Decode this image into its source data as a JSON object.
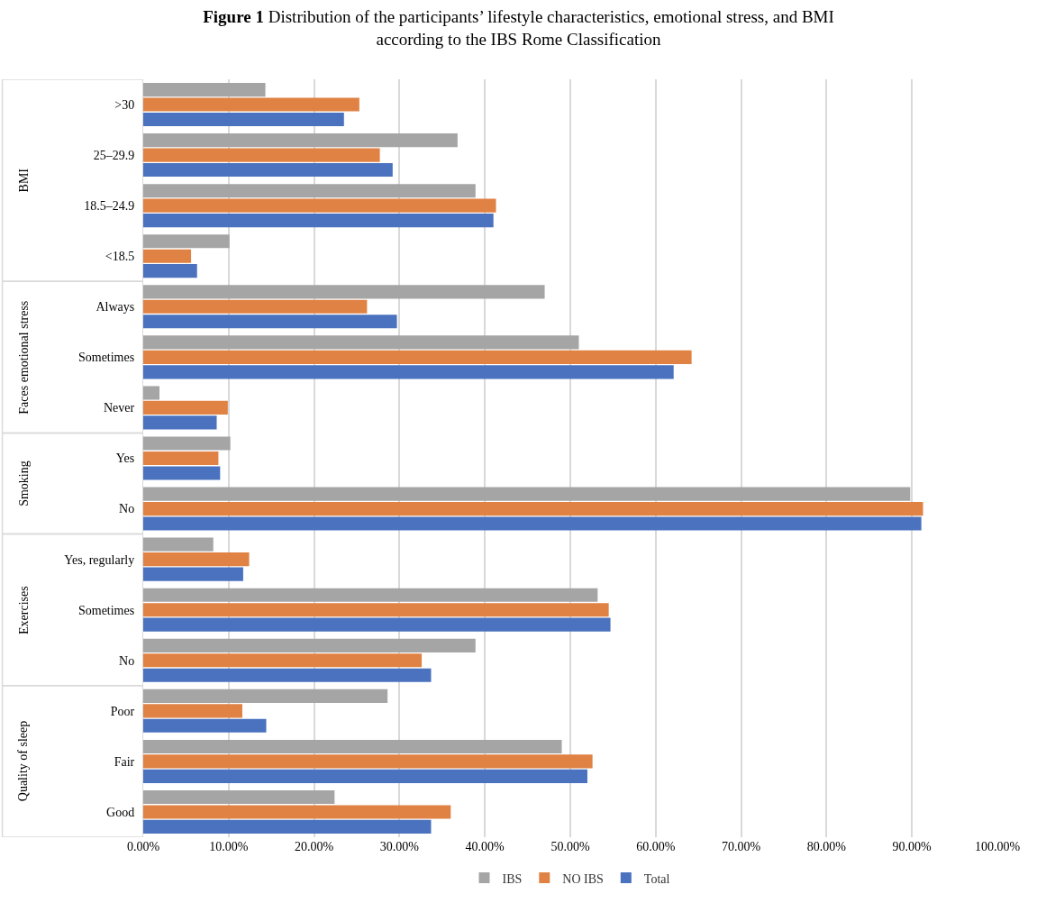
{
  "chart_data": {
    "type": "bar",
    "orientation": "horizontal",
    "title": "Figure 1 Distribution of the participants’ lifestyle characteristics, emotional stress, and BMI\naccording to the IBS Rome Classification",
    "categories": [
      ">30",
      "25–29.9",
      "18.5–24.9",
      "<18.5",
      "Always",
      "Sometimes",
      "Never",
      "Yes",
      "No",
      "Yes, regularly",
      "Sometimes",
      "No",
      "Poor",
      "Fair",
      "Good"
    ],
    "series": [
      {
        "name": "IBS",
        "color": "#a5a5a5",
        "values": [
          14.3,
          36.8,
          38.9,
          10.1,
          47.0,
          51.0,
          1.9,
          10.2,
          89.8,
          8.2,
          53.2,
          38.9,
          28.6,
          49.0,
          22.4
        ]
      },
      {
        "name": "NO IBS",
        "color": "#e08244",
        "values": [
          25.3,
          27.7,
          41.3,
          5.6,
          26.2,
          64.2,
          9.9,
          8.8,
          91.3,
          12.4,
          54.5,
          32.6,
          11.6,
          52.6,
          36.0
        ]
      },
      {
        "name": "Total",
        "color": "#4a72bf",
        "values": [
          23.5,
          29.2,
          41.0,
          6.3,
          29.7,
          62.1,
          8.6,
          9.0,
          91.1,
          11.7,
          54.7,
          33.7,
          14.4,
          52.0,
          33.7
        ]
      }
    ],
    "annotations": [
      "BMI",
      "Faces emotional stress",
      "Smoking",
      "Exercises",
      "Quality of sleep"
    ],
    "xlim": [
      0,
      100
    ],
    "xticks": [
      {
        "value": 0,
        "label": "0.00%"
      },
      {
        "value": 10,
        "label": "10.00%"
      },
      {
        "value": 20,
        "label": "20.00%"
      },
      {
        "value": 30,
        "label": "30.00%"
      },
      {
        "value": 40,
        "label": "40.00%"
      },
      {
        "value": 50,
        "label": "50.00%"
      },
      {
        "value": 60,
        "label": "60.00%"
      },
      {
        "value": 70,
        "label": "70.00%"
      },
      {
        "value": 80,
        "label": "80.00%"
      },
      {
        "value": 90,
        "label": "90.00%"
      },
      {
        "value": 100,
        "label": "100.00%"
      }
    ],
    "grid": "x",
    "legend": "bottom"
  }
}
